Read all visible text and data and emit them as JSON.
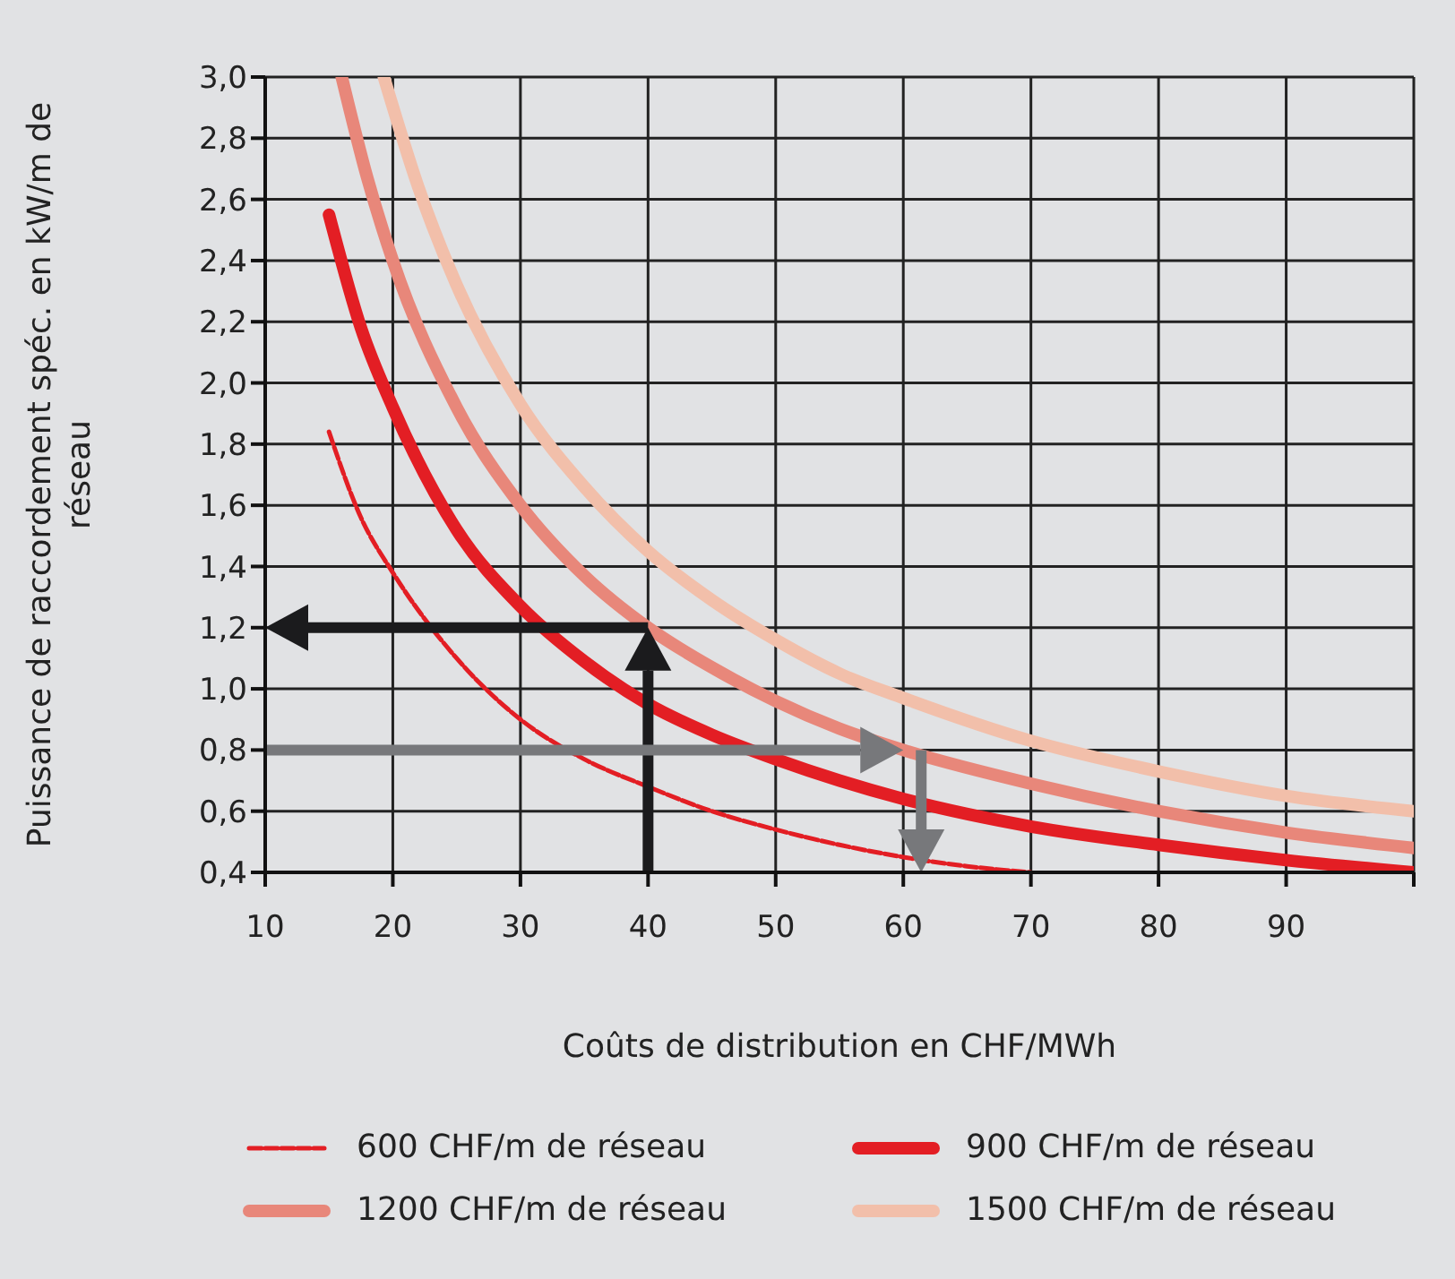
{
  "chart_data": {
    "type": "line",
    "xlabel": "Coûts de distribution en CHF/MWh",
    "ylabel": "Puissance de raccordement spéc. en kW/m de réseau",
    "xlim": [
      10,
      100
    ],
    "ylim": [
      0.4,
      3.0
    ],
    "xticks": [
      10,
      20,
      30,
      40,
      50,
      60,
      70,
      80,
      90,
      {
        "value": 100,
        "label": null
      }
    ],
    "yticks": [
      {
        "value": 0.4,
        "label": "0,4"
      },
      {
        "value": 0.6,
        "label": "0,6"
      },
      {
        "value": 0.8,
        "label": "0,8"
      },
      {
        "value": 1.0,
        "label": "1,0"
      },
      {
        "value": 1.2,
        "label": "1,2"
      },
      {
        "value": 1.4,
        "label": "1,4"
      },
      {
        "value": 1.6,
        "label": "1,6"
      },
      {
        "value": 1.8,
        "label": "1,8"
      },
      {
        "value": 2.0,
        "label": "2,0"
      },
      {
        "value": 2.2,
        "label": "2,2"
      },
      {
        "value": 2.4,
        "label": "2,4"
      },
      {
        "value": 2.6,
        "label": "2,6"
      },
      {
        "value": 2.8,
        "label": "2,8"
      },
      {
        "value": 3.0,
        "label": "3,0"
      }
    ],
    "grid": true,
    "legend": "bottom",
    "series": [
      {
        "name": "600 CHF/m de réseau",
        "color": "#e31e24",
        "line_style": "dashed",
        "x": [
          15,
          17.5,
          20,
          25,
          30,
          35,
          40,
          45,
          50,
          55,
          60,
          65,
          70
        ],
        "values": [
          1.84,
          1.56,
          1.38,
          1.1,
          0.9,
          0.77,
          0.68,
          0.6,
          0.54,
          0.49,
          0.45,
          0.42,
          0.4
        ]
      },
      {
        "name": "900 CHF/m de réseau",
        "color": "#e31e24",
        "line_style": "solid",
        "x": [
          15,
          17.5,
          20,
          25,
          30,
          35,
          40,
          45,
          50,
          55,
          60,
          70,
          80,
          90,
          100
        ],
        "values": [
          2.55,
          2.18,
          1.92,
          1.52,
          1.27,
          1.09,
          0.95,
          0.85,
          0.77,
          0.7,
          0.64,
          0.55,
          0.49,
          0.44,
          0.4
        ]
      },
      {
        "name": "1200 CHF/m de réseau",
        "color": "#e8877a",
        "line_style": "solid",
        "x": [
          16,
          18,
          20,
          25,
          30,
          35,
          40,
          45,
          50,
          55,
          60,
          70,
          80,
          90,
          100
        ],
        "values": [
          3.0,
          2.67,
          2.4,
          1.92,
          1.6,
          1.37,
          1.2,
          1.07,
          0.96,
          0.87,
          0.8,
          0.69,
          0.6,
          0.53,
          0.48
        ]
      },
      {
        "name": "1500 CHF/m de réseau",
        "color": "#f2bfaa",
        "line_style": "solid",
        "x": [
          19.3,
          22,
          25,
          30,
          35,
          40,
          45,
          50,
          55,
          60,
          70,
          80,
          90,
          100
        ],
        "values": [
          3.0,
          2.64,
          2.32,
          1.93,
          1.66,
          1.45,
          1.29,
          1.16,
          1.05,
          0.97,
          0.83,
          0.73,
          0.65,
          0.6
        ]
      }
    ]
  }
}
